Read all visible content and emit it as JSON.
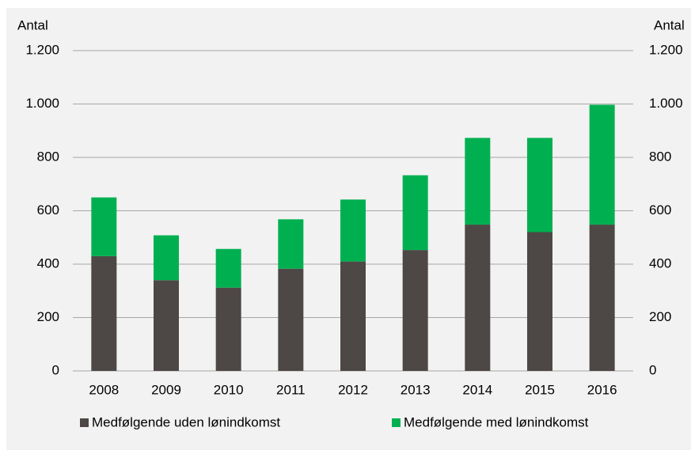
{
  "chart_data": {
    "type": "stacked_bar",
    "y_label": "Antal",
    "y2_label": "Antal",
    "categories": [
      "2008",
      "2009",
      "2010",
      "2011",
      "2012",
      "2013",
      "2014",
      "2015",
      "2016"
    ],
    "series": [
      {
        "name": "Medfølgende uden lønindkomst",
        "color": "#4d4845",
        "values": [
          430,
          340,
          312,
          383,
          410,
          453,
          548,
          520,
          548
        ]
      },
      {
        "name": "Medfølgende med lønindkomst",
        "color": "#00b050",
        "values": [
          220,
          168,
          145,
          185,
          232,
          280,
          325,
          353,
          449
        ]
      }
    ],
    "ylim": [
      0,
      1200
    ],
    "yticks": [
      0,
      200,
      400,
      600,
      800,
      {
        "value": 1000,
        "label": "1.000"
      },
      {
        "value": 1200,
        "label": "1.200"
      }
    ],
    "y2lim": [
      0,
      1200
    ],
    "y2ticks": [
      0,
      200,
      400,
      600,
      800,
      {
        "value": 1000,
        "label": "1.000"
      },
      {
        "value": 1200,
        "label": "1.200"
      }
    ],
    "grid": true,
    "legend": "bottom"
  }
}
